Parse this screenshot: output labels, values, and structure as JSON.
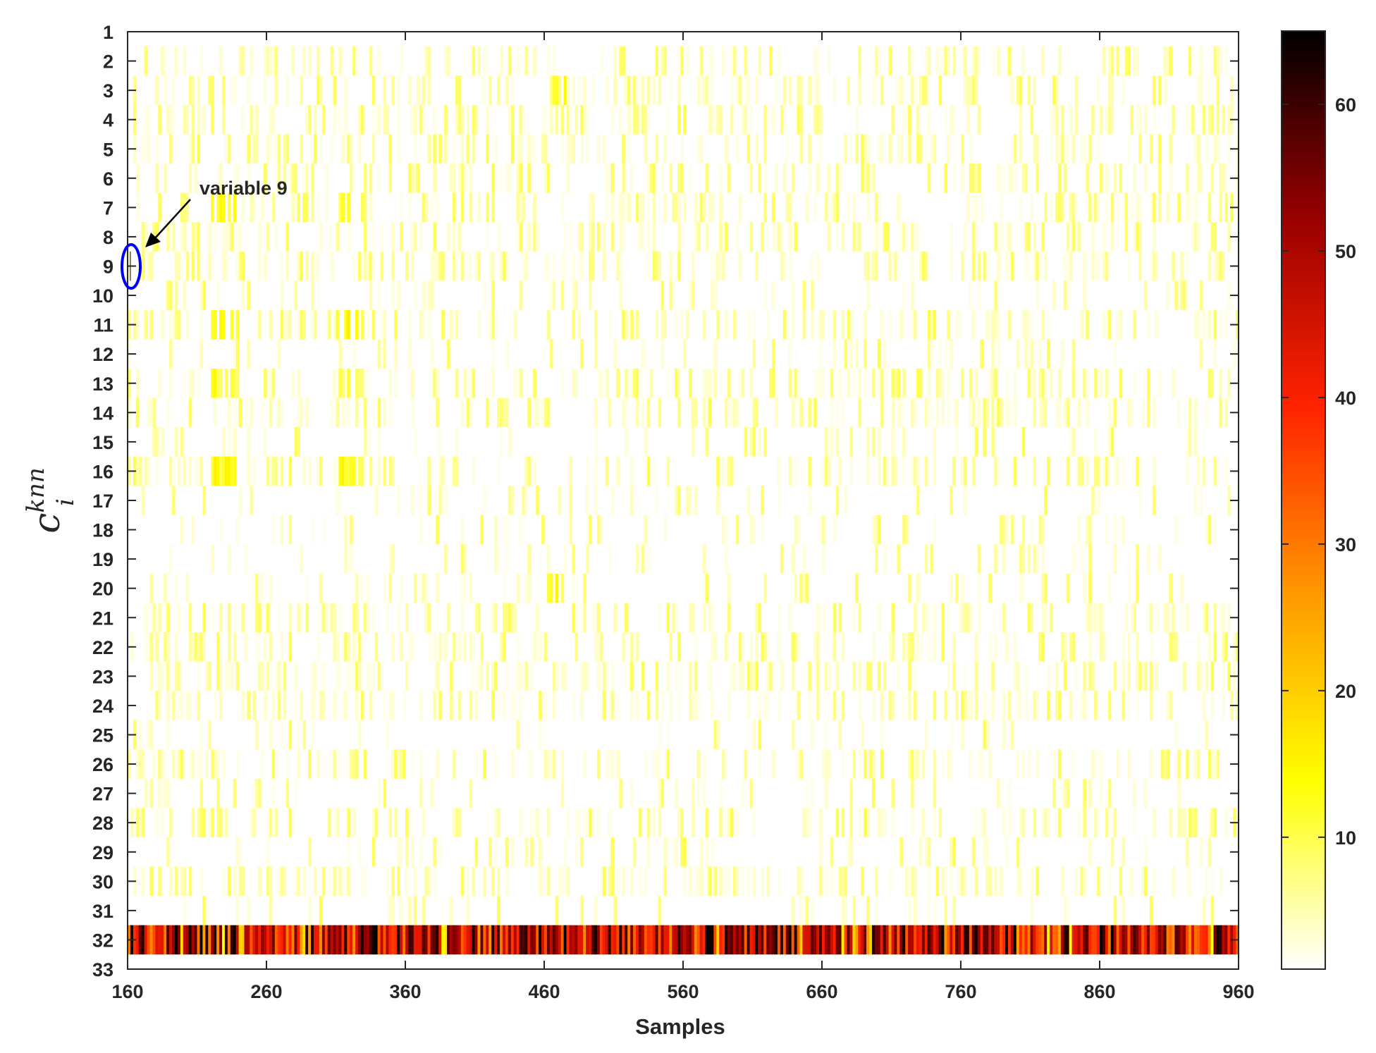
{
  "chart_data": {
    "type": "heatmap",
    "title": "",
    "xlabel": "Samples",
    "ylabel": "c_i^{knn}",
    "ylabel_parts": {
      "base": "c",
      "sub": "i",
      "sup": "knn"
    },
    "x_range": [
      160,
      960
    ],
    "x_ticks": [
      160,
      260,
      360,
      460,
      560,
      660,
      760,
      860,
      960
    ],
    "y_range": [
      1,
      33
    ],
    "y_ticks": [
      1,
      2,
      3,
      4,
      5,
      6,
      7,
      8,
      9,
      10,
      11,
      12,
      13,
      14,
      15,
      16,
      17,
      18,
      19,
      20,
      21,
      22,
      23,
      24,
      25,
      26,
      27,
      28,
      29,
      30,
      31,
      32,
      33
    ],
    "colormap": "hot (reversed)",
    "colormap_stops": [
      "#ffffff",
      "#ffff00",
      "#ff9900",
      "#ff2200",
      "#990000",
      "#000000"
    ],
    "colorbar": {
      "range": [
        1,
        65
      ],
      "ticks": [
        10,
        20,
        30,
        40,
        50,
        60
      ]
    },
    "rows": [
      {
        "variable": 2,
        "intensity": "low"
      },
      {
        "variable": 3,
        "intensity": "low"
      },
      {
        "variable": 4,
        "intensity": "low"
      },
      {
        "variable": 5,
        "intensity": "low"
      },
      {
        "variable": 6,
        "intensity": "low"
      },
      {
        "variable": 7,
        "intensity": "low"
      },
      {
        "variable": 8,
        "intensity": "low"
      },
      {
        "variable": 9,
        "intensity": "low"
      },
      {
        "variable": 10,
        "intensity": "very low"
      },
      {
        "variable": 11,
        "intensity": "low"
      },
      {
        "variable": 12,
        "intensity": "very low"
      },
      {
        "variable": 13,
        "intensity": "low"
      },
      {
        "variable": 14,
        "intensity": "low"
      },
      {
        "variable": 15,
        "intensity": "very low"
      },
      {
        "variable": 16,
        "intensity": "low"
      },
      {
        "variable": 17,
        "intensity": "very low"
      },
      {
        "variable": 18,
        "intensity": "very low"
      },
      {
        "variable": 19,
        "intensity": "very low"
      },
      {
        "variable": 20,
        "intensity": "very low"
      },
      {
        "variable": 21,
        "intensity": "low"
      },
      {
        "variable": 22,
        "intensity": "low"
      },
      {
        "variable": 23,
        "intensity": "low"
      },
      {
        "variable": 24,
        "intensity": "low"
      },
      {
        "variable": 25,
        "intensity": "very low"
      },
      {
        "variable": 26,
        "intensity": "low"
      },
      {
        "variable": 27,
        "intensity": "very low"
      },
      {
        "variable": 28,
        "intensity": "low"
      },
      {
        "variable": 29,
        "intensity": "very low"
      },
      {
        "variable": 30,
        "intensity": "low"
      },
      {
        "variable": 31,
        "intensity": "very low"
      },
      {
        "variable": 32,
        "intensity": "high",
        "value_range": [
          25,
          65
        ]
      }
    ],
    "highlight_bands": [
      {
        "rows": [
          7,
          11,
          13,
          16
        ],
        "x_range": [
          220,
          240
        ]
      },
      {
        "rows": [
          7,
          11,
          13,
          16
        ],
        "x_range": [
          310,
          330
        ]
      },
      {
        "rows": [
          20
        ],
        "x_range": [
          460,
          475
        ]
      },
      {
        "rows": [
          3
        ],
        "x_range": [
          460,
          475
        ]
      }
    ],
    "annotation": {
      "text": "variable 9",
      "target": {
        "x": 162,
        "y": 9
      },
      "marker_color": "#0000ff"
    }
  }
}
